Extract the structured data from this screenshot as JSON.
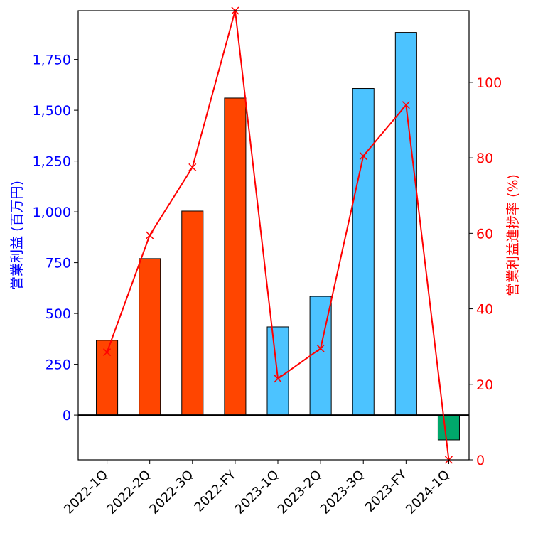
{
  "chart_data": {
    "type": "bar",
    "categories": [
      "2022-1Q",
      "2022-2Q",
      "2022-3Q",
      "2022-FY",
      "2023-1Q",
      "2023-2Q",
      "2023-3Q",
      "2023-FY",
      "2024-1Q"
    ],
    "series": [
      {
        "axis": "left",
        "type": "bar",
        "values": [
          368,
          770,
          1004,
          1560,
          434,
          584,
          1607,
          1883,
          -122
        ],
        "colors": [
          "#ff4500",
          "#ff4500",
          "#ff4500",
          "#ff4500",
          "#4cc3ff",
          "#4cc3ff",
          "#4cc3ff",
          "#4cc3ff",
          "#00a86b"
        ]
      },
      {
        "axis": "right",
        "type": "line",
        "marker": "x",
        "color": "#ff0000",
        "values": [
          28.5,
          59.5,
          77.5,
          119.0,
          21.5,
          29.5,
          80.5,
          94.0,
          0.0
        ]
      }
    ],
    "ylabel": "営業利益 (百万円)",
    "y2label": "営業利益進捗率 (%)",
    "ylim": [
      -220,
      1990
    ],
    "y2lim": [
      0,
      119
    ],
    "yticks": [
      0,
      250,
      500,
      750,
      1000,
      1250,
      1500,
      1750
    ],
    "ytick_labels": [
      "0",
      "250",
      "500",
      "750",
      "1,000",
      "1,250",
      "1,500",
      "1,750"
    ],
    "y2ticks": [
      0,
      20,
      40,
      60,
      80,
      100
    ],
    "y2tick_labels": [
      "0",
      "20",
      "40",
      "60",
      "80",
      "100"
    ],
    "left_axis_color": "#0000ff",
    "right_axis_color": "#ff0000",
    "grid": false,
    "legend": "none"
  }
}
